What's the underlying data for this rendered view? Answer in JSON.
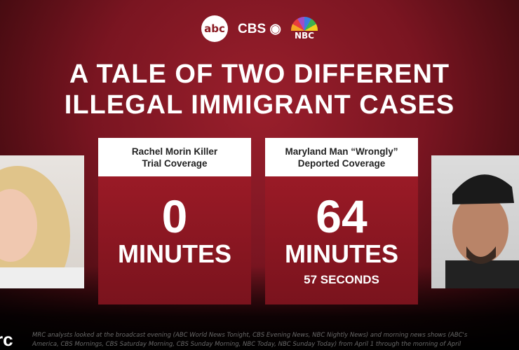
{
  "logos": {
    "abc": "abc",
    "cbs": "CBS",
    "nbc": "NBC"
  },
  "title": {
    "line1": "A TALE OF TWO DIFFERENT",
    "line2": "ILLEGAL IMMIGRANT CASES"
  },
  "left_card": {
    "header_line1": "Rachel Morin Killer",
    "header_line2": "Trial Coverage",
    "value": "0",
    "unit": "MINUTES"
  },
  "right_card": {
    "header_line1": "Maryland Man “Wrongly”",
    "header_line2": "Deported Coverage",
    "value": "64",
    "unit": "MINUTES",
    "seconds": "57 SECONDS"
  },
  "footer": {
    "logo": "rc",
    "note_line1": "MRC analysts looked at the broadcast evening (ABC World News Tonight, CBS Evening News, NBC Nightly News) and morning news shows (ABC's",
    "note_line2": "America, CBS Mornings, CBS Saturday Morning, CBS Sunday Morning, NBC Today, NBC Sunday Today) from April 1 through the morning of April"
  },
  "colors": {
    "card_red": "#8a1622",
    "background": "#7a1521"
  }
}
